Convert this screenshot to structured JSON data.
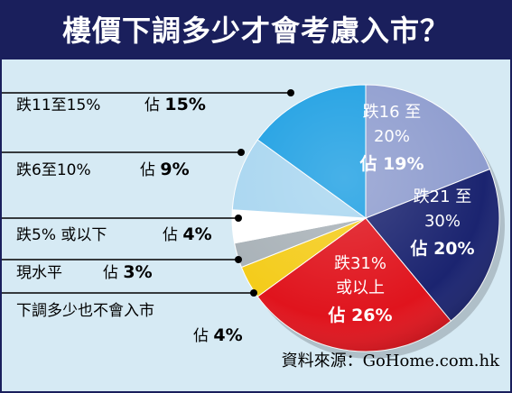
{
  "header": {
    "title": "樓價下調多少才會考慮入市？"
  },
  "source": "資料來源：GoHome.com.hk",
  "chart_data": {
    "type": "pie",
    "title": "樓價下調多少才會考慮入市？",
    "slices": [
      {
        "label": "跌16至20%",
        "lines": [
          "跌16 至",
          "20%"
        ],
        "pct_text": "佔 19%",
        "value": 19,
        "color": "#8f9dcf",
        "text_color": "#ffffff",
        "inner": true
      },
      {
        "label": "跌21至30%",
        "lines": [
          "跌21 至",
          "30%"
        ],
        "pct_text": "佔 20%",
        "value": 20,
        "color": "#1b2470",
        "text_color": "#ffffff",
        "inner": true
      },
      {
        "label": "跌31%或以上",
        "lines": [
          "跌31%",
          "或以上"
        ],
        "pct_text": "佔 26%",
        "value": 26,
        "color": "#e0141d",
        "text_color": "#ffffff",
        "inner": true
      },
      {
        "label": "下調多少也不會入市",
        "lines": [
          "下調多少也不會入市"
        ],
        "pct_text": "佔 4%",
        "value": 4,
        "color": "#f4cc1b",
        "text_color": "#000000",
        "inner": false
      },
      {
        "label": "現水平",
        "lines": [
          "現水平"
        ],
        "pct_text": "佔 3%",
        "value": 3,
        "color": "#a9b2b8",
        "text_color": "#000000",
        "inner": false
      },
      {
        "label": "跌5%或以下",
        "lines": [
          "跌5% 或以下"
        ],
        "pct_text": "佔 4%",
        "value": 4,
        "color": "#ffffff",
        "text_color": "#000000",
        "inner": false
      },
      {
        "label": "跌6至10%",
        "lines": [
          "跌6至10%"
        ],
        "pct_text": "佔 9%",
        "value": 9,
        "color": "#a9d6f0",
        "text_color": "#000000",
        "inner": false
      },
      {
        "label": "跌11至15%",
        "lines": [
          "跌11至15%"
        ],
        "pct_text": "佔 15%",
        "value": 15,
        "color": "#1fa0e3",
        "text_color": "#000000",
        "inner": false
      }
    ]
  }
}
